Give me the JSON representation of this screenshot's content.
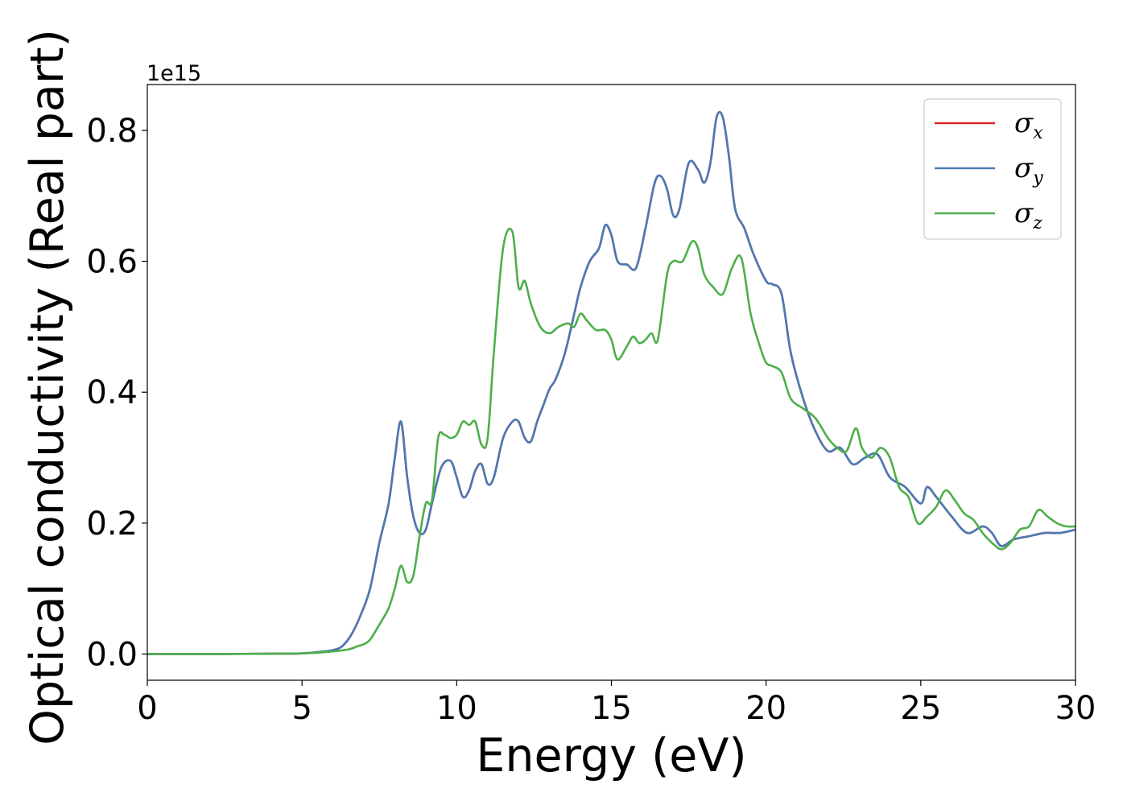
{
  "chart_data": {
    "type": "line",
    "title": "",
    "xlabel": "Energy (eV)",
    "ylabel": "Optical conductivity (Real part)",
    "y_offset_label": "1e15",
    "xlim": [
      0,
      30
    ],
    "ylim": [
      -0.04,
      0.87
    ],
    "xticks": [
      0,
      5,
      10,
      15,
      20,
      25,
      30
    ],
    "xtick_labels": [
      "0",
      "5",
      "10",
      "15",
      "20",
      "25",
      "30"
    ],
    "yticks": [
      0.0,
      0.2,
      0.4,
      0.6,
      0.8
    ],
    "ytick_labels": [
      "0.0",
      "0.2",
      "0.4",
      "0.6",
      "0.8"
    ],
    "grid": false,
    "legend_position": "top-right",
    "series": [
      {
        "name": "σx",
        "symbol": "σ",
        "subscript": "x",
        "color": "#d62728",
        "x": [
          0,
          2,
          4,
          5,
          5.5,
          6,
          6.3,
          6.6,
          6.9,
          7.2,
          7.5,
          7.8,
          8.0,
          8.2,
          8.4,
          8.6,
          8.8,
          9.0,
          9.2,
          9.5,
          9.8,
          10.0,
          10.2,
          10.4,
          10.6,
          10.8,
          11.0,
          11.2,
          11.5,
          11.8,
          12.0,
          12.2,
          12.4,
          12.6,
          12.8,
          13.0,
          13.2,
          13.5,
          13.8,
          14.0,
          14.3,
          14.6,
          14.8,
          15.0,
          15.2,
          15.5,
          15.8,
          16.1,
          16.4,
          16.6,
          16.8,
          17.0,
          17.2,
          17.5,
          17.8,
          18.0,
          18.2,
          18.4,
          18.6,
          18.8,
          19.0,
          19.3,
          19.6,
          20.0,
          20.2,
          20.5,
          20.8,
          21.2,
          21.6,
          22.0,
          22.4,
          22.8,
          23.2,
          23.6,
          24.0,
          24.5,
          25.0,
          25.2,
          25.5,
          26.0,
          26.5,
          27.0,
          27.3,
          27.6,
          28.0,
          28.5,
          29.0,
          29.5,
          30.0
        ],
        "y": [
          0,
          0,
          0.0005,
          0.001,
          0.003,
          0.006,
          0.012,
          0.03,
          0.06,
          0.1,
          0.17,
          0.23,
          0.3,
          0.355,
          0.27,
          0.21,
          0.185,
          0.19,
          0.23,
          0.285,
          0.295,
          0.27,
          0.24,
          0.25,
          0.28,
          0.29,
          0.26,
          0.27,
          0.33,
          0.355,
          0.355,
          0.33,
          0.325,
          0.355,
          0.38,
          0.405,
          0.42,
          0.46,
          0.52,
          0.56,
          0.6,
          0.62,
          0.655,
          0.64,
          0.6,
          0.595,
          0.59,
          0.65,
          0.72,
          0.73,
          0.71,
          0.67,
          0.68,
          0.75,
          0.74,
          0.72,
          0.75,
          0.82,
          0.82,
          0.76,
          0.68,
          0.65,
          0.61,
          0.57,
          0.565,
          0.55,
          0.46,
          0.39,
          0.34,
          0.31,
          0.315,
          0.29,
          0.3,
          0.305,
          0.27,
          0.255,
          0.23,
          0.255,
          0.24,
          0.21,
          0.185,
          0.195,
          0.185,
          0.165,
          0.175,
          0.18,
          0.185,
          0.185,
          0.19
        ]
      },
      {
        "name": "σy",
        "symbol": "σ",
        "subscript": "y",
        "color": "#4a7ab5",
        "x": [
          0,
          2,
          4,
          5,
          5.5,
          6,
          6.3,
          6.6,
          6.9,
          7.2,
          7.5,
          7.8,
          8.0,
          8.2,
          8.4,
          8.6,
          8.8,
          9.0,
          9.2,
          9.5,
          9.8,
          10.0,
          10.2,
          10.4,
          10.6,
          10.8,
          11.0,
          11.2,
          11.5,
          11.8,
          12.0,
          12.2,
          12.4,
          12.6,
          12.8,
          13.0,
          13.2,
          13.5,
          13.8,
          14.0,
          14.3,
          14.6,
          14.8,
          15.0,
          15.2,
          15.5,
          15.8,
          16.1,
          16.4,
          16.6,
          16.8,
          17.0,
          17.2,
          17.5,
          17.8,
          18.0,
          18.2,
          18.4,
          18.6,
          18.8,
          19.0,
          19.3,
          19.6,
          20.0,
          20.2,
          20.5,
          20.8,
          21.2,
          21.6,
          22.0,
          22.4,
          22.8,
          23.2,
          23.6,
          24.0,
          24.5,
          25.0,
          25.2,
          25.5,
          26.0,
          26.5,
          27.0,
          27.3,
          27.6,
          28.0,
          28.5,
          29.0,
          29.5,
          30.0
        ],
        "y": [
          0,
          0,
          0.0005,
          0.001,
          0.003,
          0.006,
          0.012,
          0.03,
          0.06,
          0.1,
          0.17,
          0.23,
          0.3,
          0.355,
          0.27,
          0.21,
          0.185,
          0.19,
          0.23,
          0.285,
          0.295,
          0.27,
          0.24,
          0.25,
          0.28,
          0.29,
          0.26,
          0.27,
          0.33,
          0.355,
          0.355,
          0.33,
          0.325,
          0.355,
          0.38,
          0.405,
          0.42,
          0.46,
          0.52,
          0.56,
          0.6,
          0.62,
          0.655,
          0.64,
          0.6,
          0.595,
          0.59,
          0.65,
          0.72,
          0.73,
          0.71,
          0.67,
          0.68,
          0.75,
          0.74,
          0.72,
          0.75,
          0.82,
          0.82,
          0.76,
          0.68,
          0.65,
          0.61,
          0.57,
          0.565,
          0.55,
          0.46,
          0.39,
          0.34,
          0.31,
          0.315,
          0.29,
          0.3,
          0.305,
          0.27,
          0.255,
          0.23,
          0.255,
          0.24,
          0.21,
          0.185,
          0.195,
          0.185,
          0.165,
          0.175,
          0.18,
          0.185,
          0.185,
          0.19
        ]
      },
      {
        "name": "σz",
        "symbol": "σ",
        "subscript": "z",
        "color": "#4daf4a",
        "x": [
          0,
          2,
          4,
          5,
          5.5,
          6,
          6.5,
          6.8,
          7.0,
          7.2,
          7.5,
          7.8,
          8.0,
          8.2,
          8.4,
          8.6,
          8.8,
          9.0,
          9.2,
          9.4,
          9.6,
          9.8,
          10.0,
          10.2,
          10.4,
          10.6,
          10.8,
          11.0,
          11.2,
          11.5,
          11.8,
          12.0,
          12.2,
          12.4,
          12.7,
          13.0,
          13.3,
          13.6,
          13.8,
          14.0,
          14.2,
          14.5,
          14.8,
          15.0,
          15.2,
          15.5,
          15.7,
          15.9,
          16.1,
          16.3,
          16.5,
          16.8,
          17.0,
          17.3,
          17.6,
          17.8,
          18.0,
          18.3,
          18.6,
          18.9,
          19.2,
          19.5,
          19.8,
          20.0,
          20.2,
          20.5,
          20.8,
          21.2,
          21.6,
          22.0,
          22.3,
          22.6,
          22.9,
          23.1,
          23.4,
          23.7,
          24.0,
          24.3,
          24.6,
          24.9,
          25.2,
          25.5,
          25.8,
          26.1,
          26.4,
          26.7,
          27.0,
          27.3,
          27.6,
          27.9,
          28.2,
          28.5,
          28.8,
          29.1,
          29.4,
          29.7,
          30.0
        ],
        "y": [
          0,
          0,
          0.0005,
          0.001,
          0.002,
          0.004,
          0.007,
          0.012,
          0.015,
          0.022,
          0.045,
          0.07,
          0.1,
          0.135,
          0.11,
          0.12,
          0.18,
          0.23,
          0.235,
          0.33,
          0.335,
          0.33,
          0.335,
          0.355,
          0.35,
          0.355,
          0.32,
          0.33,
          0.46,
          0.62,
          0.645,
          0.56,
          0.57,
          0.535,
          0.5,
          0.49,
          0.5,
          0.505,
          0.5,
          0.52,
          0.51,
          0.495,
          0.495,
          0.48,
          0.45,
          0.47,
          0.485,
          0.475,
          0.48,
          0.49,
          0.48,
          0.58,
          0.6,
          0.6,
          0.63,
          0.62,
          0.58,
          0.56,
          0.55,
          0.59,
          0.605,
          0.52,
          0.47,
          0.445,
          0.44,
          0.43,
          0.39,
          0.375,
          0.36,
          0.33,
          0.315,
          0.31,
          0.345,
          0.315,
          0.3,
          0.315,
          0.3,
          0.255,
          0.24,
          0.2,
          0.21,
          0.225,
          0.25,
          0.235,
          0.215,
          0.205,
          0.185,
          0.17,
          0.16,
          0.17,
          0.19,
          0.195,
          0.22,
          0.21,
          0.2,
          0.195,
          0.195
        ]
      }
    ]
  }
}
